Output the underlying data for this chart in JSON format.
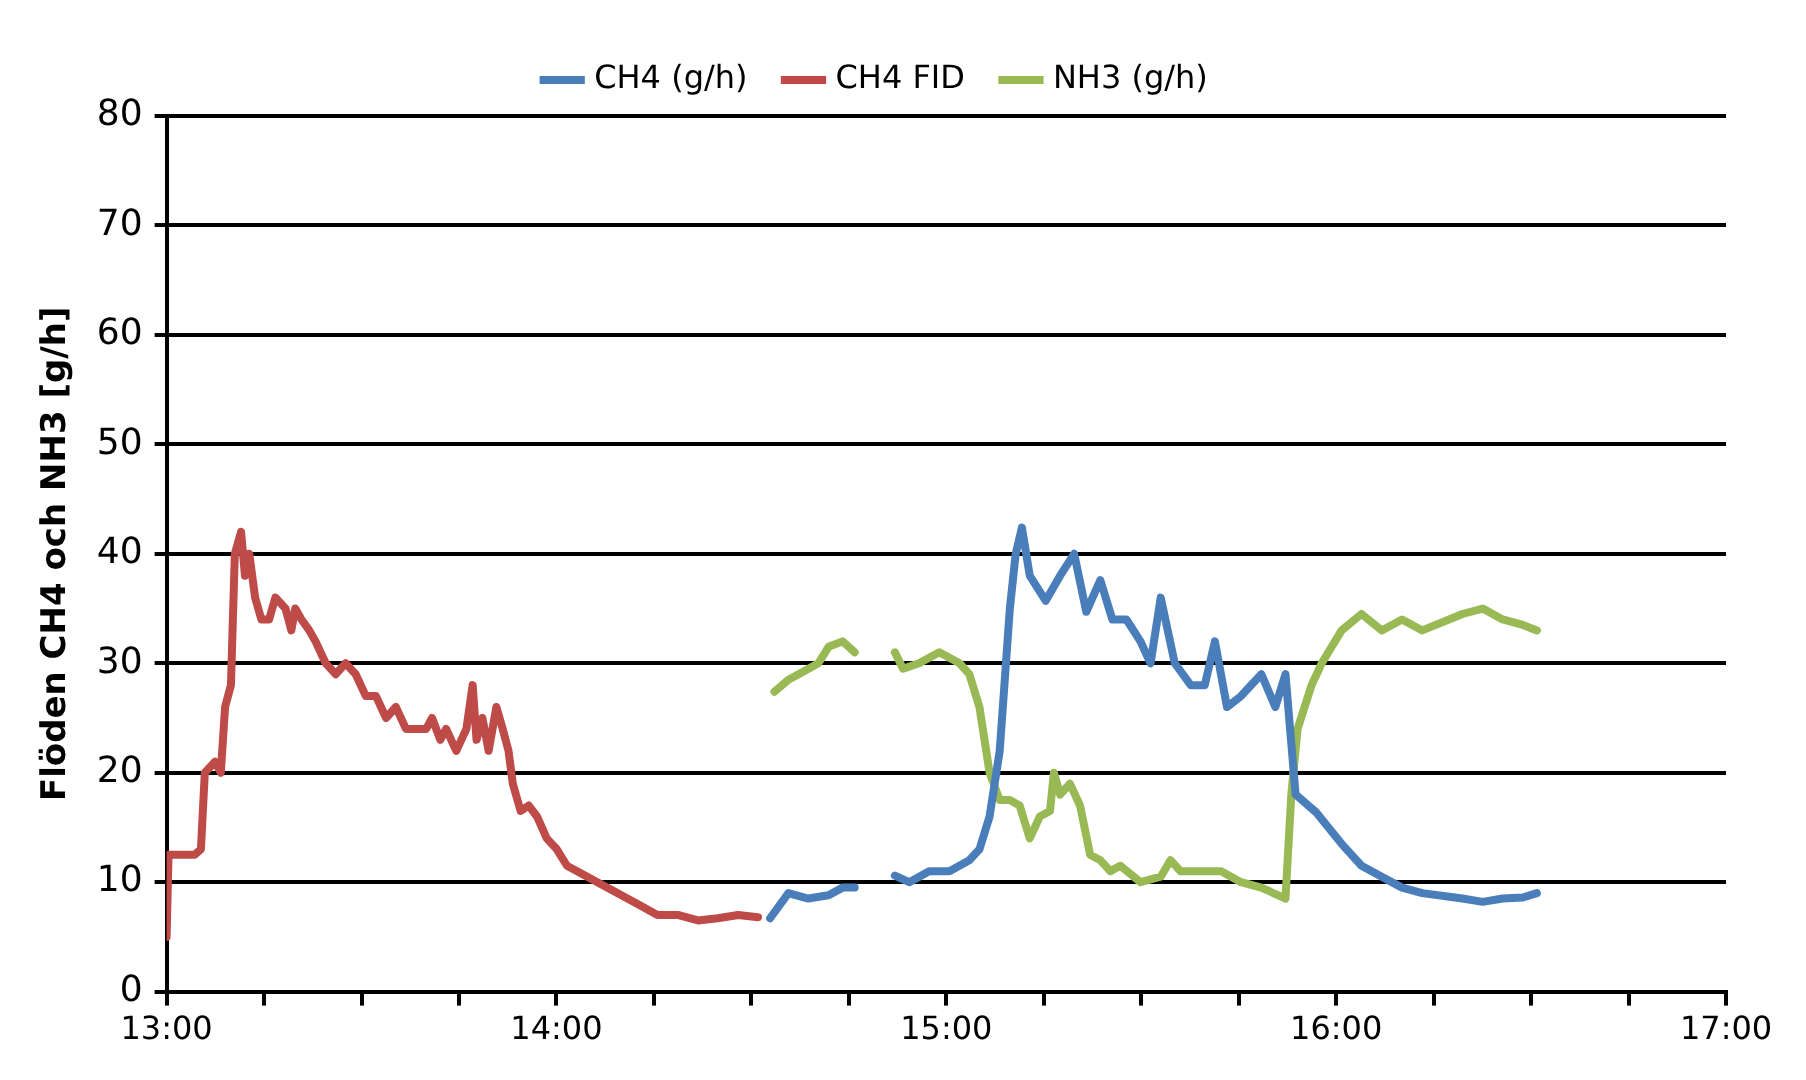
{
  "chart_data": {
    "type": "line",
    "ylabel": "Flöden CH4 och NH3 [g/h]",
    "xlim": [
      13,
      17
    ],
    "ylim": [
      0,
      80
    ],
    "xticks": [
      {
        "value": 13,
        "label": "13:00"
      },
      {
        "value": 13.25,
        "label": null
      },
      {
        "value": 13.5,
        "label": null
      },
      {
        "value": 13.75,
        "label": null
      },
      {
        "value": 14,
        "label": "14:00"
      },
      {
        "value": 14.25,
        "label": null
      },
      {
        "value": 14.5,
        "label": null
      },
      {
        "value": 14.75,
        "label": null
      },
      {
        "value": 15,
        "label": "15:00"
      },
      {
        "value": 15.25,
        "label": null
      },
      {
        "value": 15.5,
        "label": null
      },
      {
        "value": 15.75,
        "label": null
      },
      {
        "value": 16,
        "label": "16:00"
      },
      {
        "value": 16.25,
        "label": null
      },
      {
        "value": 16.5,
        "label": null
      },
      {
        "value": 16.75,
        "label": null
      },
      {
        "value": 17,
        "label": "17:00"
      }
    ],
    "yticks": [
      0,
      10,
      20,
      30,
      40,
      50,
      60,
      70,
      80
    ],
    "grid": "y",
    "legend": "top",
    "marker": "none",
    "line_style": "solid",
    "series": [
      {
        "name": "CH4 (g/h)",
        "color": "#4a7ebb",
        "x": [
          14.548,
          14.595,
          14.646,
          14.698,
          14.734,
          14.765,
          14.8,
          14.868,
          14.905,
          14.956,
          15.008,
          15.059,
          15.085,
          15.111,
          15.137,
          15.163,
          15.178,
          15.194,
          15.214,
          15.255,
          15.292,
          15.328,
          15.359,
          15.395,
          15.426,
          15.462,
          15.498,
          15.524,
          15.55,
          15.586,
          15.627,
          15.663,
          15.689,
          15.72,
          15.756,
          15.808,
          15.844,
          15.87,
          15.896,
          15.948,
          16.014,
          16.065,
          16.117,
          16.169,
          16.221,
          16.324,
          16.376,
          16.427,
          16.479,
          16.515
        ],
        "values": [
          6.7,
          9,
          8.5,
          8.8,
          9.5,
          9.5,
          null,
          10.6,
          10,
          11,
          11,
          12,
          13,
          16,
          22,
          35,
          40,
          42.4,
          38,
          35.7,
          38,
          40,
          34.7,
          37.6,
          34,
          34,
          32,
          30,
          36,
          30,
          28,
          28,
          32,
          26,
          27,
          29,
          26,
          29,
          18,
          16.4,
          13.5,
          11.5,
          10.5,
          9.5,
          9,
          8.5,
          8.2,
          8.5,
          8.6,
          9
        ]
      },
      {
        "name": "CH4 FID",
        "color": "#be4b48",
        "x": [
          13,
          13.005,
          13.072,
          13.088,
          13.098,
          13.124,
          13.139,
          13.15,
          13.165,
          13.175,
          13.191,
          13.201,
          13.212,
          13.227,
          13.243,
          13.263,
          13.279,
          13.305,
          13.32,
          13.33,
          13.346,
          13.366,
          13.382,
          13.408,
          13.434,
          13.459,
          13.485,
          13.511,
          13.537,
          13.563,
          13.588,
          13.614,
          13.64,
          13.666,
          13.681,
          13.702,
          13.717,
          13.743,
          13.769,
          13.785,
          13.795,
          13.81,
          13.826,
          13.846,
          13.862,
          13.877,
          13.888,
          13.908,
          13.929,
          13.95,
          13.975,
          14.001,
          14.027,
          14.053,
          14.105,
          14.156,
          14.208,
          14.259,
          14.311,
          14.363,
          14.414,
          14.466,
          14.517
        ],
        "values": [
          5,
          12.5,
          12.5,
          13,
          20,
          21,
          20,
          26,
          28,
          40,
          42,
          38,
          40,
          36,
          34,
          34,
          36,
          35,
          33,
          35,
          34,
          33,
          32,
          30,
          29,
          30,
          29,
          27,
          27,
          25,
          26,
          24,
          24,
          24,
          25,
          23,
          24,
          22,
          24,
          28,
          23,
          25,
          22,
          26,
          24,
          22,
          19,
          16.5,
          17,
          16,
          14,
          13,
          11.5,
          11,
          10,
          9,
          8,
          7,
          7,
          6.5,
          6.7,
          7,
          6.8
        ]
      },
      {
        "name": "NH3 (g/h)",
        "color": "#98b954",
        "x": [
          14.559,
          14.595,
          14.621,
          14.672,
          14.698,
          14.734,
          14.765,
          14.8,
          14.868,
          14.889,
          14.93,
          14.982,
          15.034,
          15.059,
          15.085,
          15.111,
          15.137,
          15.163,
          15.188,
          15.214,
          15.24,
          15.266,
          15.276,
          15.292,
          15.317,
          15.343,
          15.369,
          15.395,
          15.421,
          15.446,
          15.498,
          15.55,
          15.575,
          15.601,
          15.653,
          15.705,
          15.756,
          15.808,
          15.87,
          15.885,
          15.901,
          15.937,
          15.963,
          16.014,
          16.065,
          16.117,
          16.169,
          16.221,
          16.324,
          16.376,
          16.427,
          16.479,
          16.515
        ],
        "values": [
          27.4,
          28.5,
          29,
          30,
          31.5,
          32,
          31,
          null,
          31,
          29.5,
          30,
          31,
          30,
          29,
          26,
          20,
          17.5,
          17.5,
          17,
          14,
          16,
          16.5,
          20,
          18,
          19,
          17,
          12.5,
          12,
          11,
          11.5,
          10,
          10.5,
          12,
          11,
          11,
          11,
          10,
          9.5,
          8.5,
          18,
          24,
          28,
          30,
          33,
          34.5,
          33,
          34,
          33,
          34.5,
          35,
          34,
          33.5,
          33
        ]
      }
    ]
  }
}
